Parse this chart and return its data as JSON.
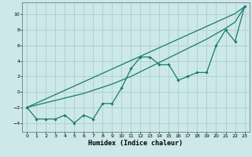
{
  "xlabel": "Humidex (Indice chaleur)",
  "bg_color": "#cce8e8",
  "line_color": "#1a7a6e",
  "grid_color": "#aacfcf",
  "xlim": [
    -0.5,
    23.5
  ],
  "ylim": [
    -5.2,
    11.5
  ],
  "xticks": [
    0,
    1,
    2,
    3,
    4,
    5,
    6,
    7,
    8,
    9,
    10,
    11,
    12,
    13,
    14,
    15,
    16,
    17,
    18,
    19,
    20,
    21,
    22,
    23
  ],
  "yticks": [
    -4,
    -2,
    0,
    2,
    4,
    6,
    8,
    10
  ],
  "x_data": [
    0,
    1,
    2,
    3,
    4,
    5,
    6,
    7,
    8,
    9,
    10,
    11,
    12,
    13,
    14,
    15,
    16,
    17,
    18,
    19,
    20,
    21,
    22,
    23
  ],
  "y_main": [
    -2,
    -3.5,
    -3.5,
    -3.5,
    -3.0,
    -4.0,
    -3.0,
    -3.5,
    -1.5,
    -1.5,
    0.5,
    3.0,
    4.5,
    4.5,
    3.5,
    3.5,
    1.5,
    2.0,
    2.5,
    2.5,
    6.0,
    8.0,
    6.5,
    11.0
  ],
  "y_reg1": [
    -2.0,
    -1.45,
    -0.9,
    -0.35,
    0.2,
    0.75,
    1.3,
    1.85,
    2.4,
    2.95,
    3.5,
    4.05,
    4.6,
    5.15,
    5.7,
    6.25,
    6.8,
    7.35,
    7.9,
    8.45,
    9.0,
    9.55,
    10.1,
    11.0
  ],
  "y_reg2": [
    -2.0,
    -1.7,
    -1.4,
    -1.1,
    -0.8,
    -0.5,
    -0.2,
    0.2,
    0.6,
    1.0,
    1.5,
    2.0,
    2.6,
    3.2,
    3.8,
    4.4,
    5.0,
    5.6,
    6.2,
    6.8,
    7.5,
    8.2,
    9.0,
    11.0
  ],
  "xlabel_fontsize": 6.0,
  "tick_fontsize": 4.5
}
